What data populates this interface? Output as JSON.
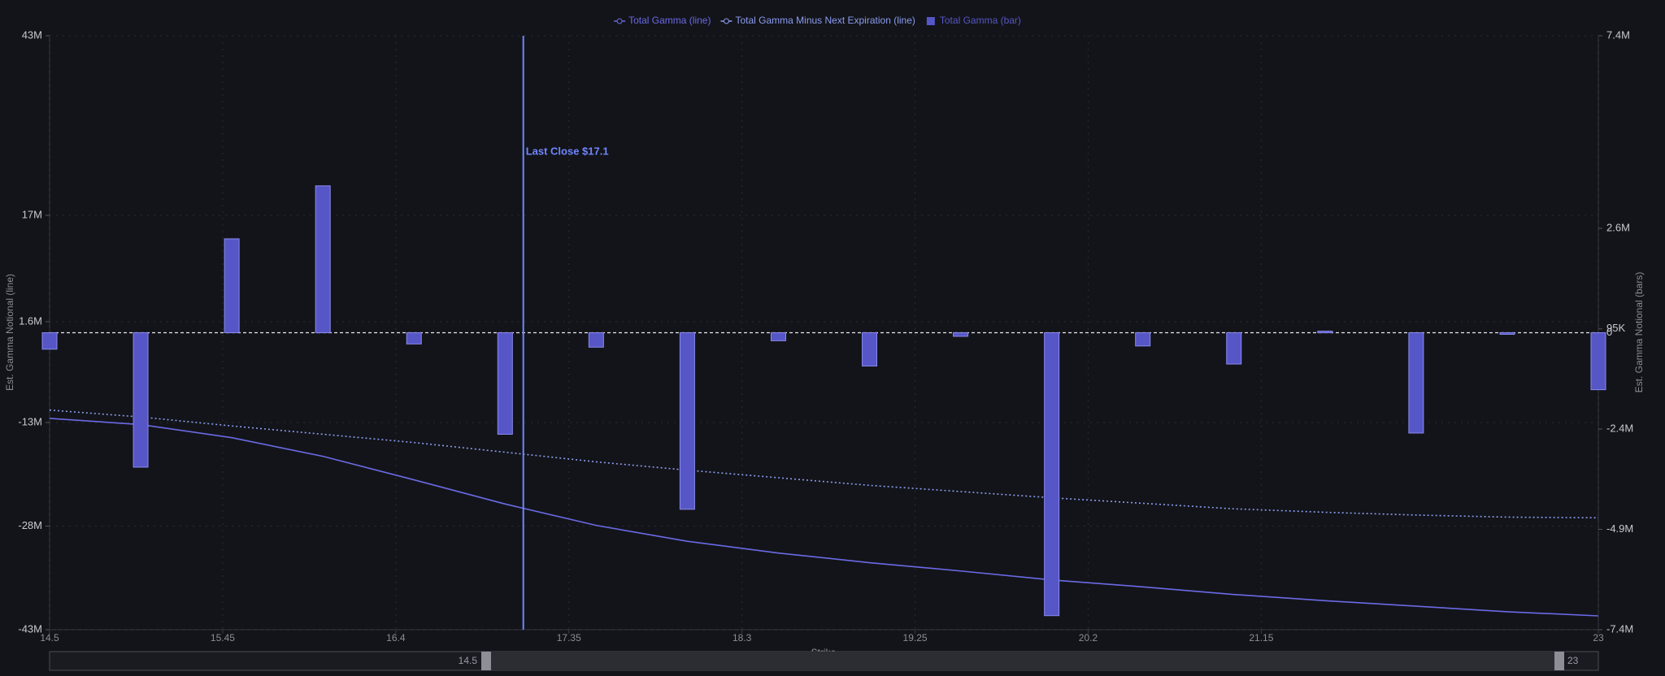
{
  "chart_data": {
    "type": "combo",
    "x_label": "Strike",
    "y_label": "Est. Gamma Notional (line)",
    "y2_label": "Est. Gamma Notional (bars)",
    "x": [
      14.5,
      15,
      15.5,
      16,
      16.5,
      17,
      17.5,
      18,
      18.5,
      19,
      19.5,
      20,
      20.5,
      21,
      21.5,
      22,
      22.5,
      23
    ],
    "xlim": [
      14.5,
      23
    ],
    "xticks": [
      14.5,
      15.45,
      16.4,
      17.35,
      18.3,
      19.25,
      20.2,
      21.15,
      23
    ],
    "ylim": [
      -43,
      43
    ],
    "yticks": [
      {
        "value": -43,
        "label": "-43M"
      },
      {
        "value": -28,
        "label": "-28M"
      },
      {
        "value": -13,
        "label": "-13M"
      },
      {
        "value": 1.6,
        "label": "1.6M"
      },
      {
        "value": 17,
        "label": "17M"
      },
      {
        "value": 43,
        "label": "43M"
      }
    ],
    "y2lim": [
      -7.4,
      7.4
    ],
    "y2ticks": [
      {
        "value": -7.4,
        "label": "-7.4M"
      },
      {
        "value": -4.9,
        "label": "-4.9M"
      },
      {
        "value": -2.4,
        "label": "-2.4M"
      },
      0,
      {
        "value": 0.095,
        "label": "95K"
      },
      {
        "value": 2.6,
        "label": "2.6M"
      },
      {
        "value": 7.4,
        "label": "7.4M"
      }
    ],
    "grid": true,
    "legend_position": "top",
    "series": [
      {
        "name": "Total Gamma (line)",
        "type": "line",
        "line_style": "solid",
        "color": "#6a6ae6",
        "values": [
          -12.4,
          -13.3,
          -15.2,
          -17.9,
          -21.3,
          -24.8,
          -27.9,
          -30.2,
          -31.9,
          -33.3,
          -34.5,
          -35.8,
          -36.8,
          -37.9,
          -38.8,
          -39.6,
          -40.4,
          -41.0
        ]
      },
      {
        "name": "Total Gamma Minus Next Expiration (line)",
        "type": "line",
        "line_style": "dotted",
        "color": "#8a9cf0",
        "values": [
          -11.2,
          -12.2,
          -13.5,
          -14.7,
          -15.9,
          -17.3,
          -18.7,
          -19.9,
          -21.0,
          -22.1,
          -23.0,
          -23.9,
          -24.7,
          -25.5,
          -26.0,
          -26.4,
          -26.7,
          -26.8
        ]
      },
      {
        "name": "Total Gamma (bar)",
        "type": "bar",
        "axis": "y2",
        "color": "#5656c6",
        "values": [
          -0.41,
          -3.35,
          2.34,
          3.66,
          -0.28,
          -2.53,
          -0.36,
          -4.4,
          -0.2,
          -0.83,
          -0.09,
          -7.05,
          -0.33,
          -0.78,
          0.04,
          -2.5,
          -0.04,
          -1.42
        ]
      }
    ],
    "annotation": {
      "x": 17.1,
      "text": "Last Close $17.1",
      "color": "#6f86ff"
    }
  }
}
